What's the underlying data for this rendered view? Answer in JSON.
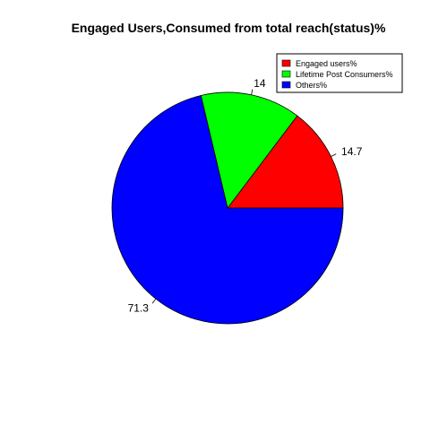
{
  "chart_data": {
    "type": "pie",
    "title": "Engaged Users,Consumed from total reach(status)%",
    "slices": [
      {
        "name": "Engaged users%",
        "value": 14.7,
        "label": "14.7",
        "color": "#ff0000"
      },
      {
        "name": "Lifetime Post Consumers%",
        "value": 14,
        "label": "14",
        "color": "#00ff00"
      },
      {
        "name": "Others%",
        "value": 71.3,
        "label": "71.3",
        "color": "#0000ff"
      }
    ],
    "start_angle_deg": 0,
    "direction": "counterclockwise",
    "legend_position": "top-right",
    "slice_border_color": "#000000"
  }
}
